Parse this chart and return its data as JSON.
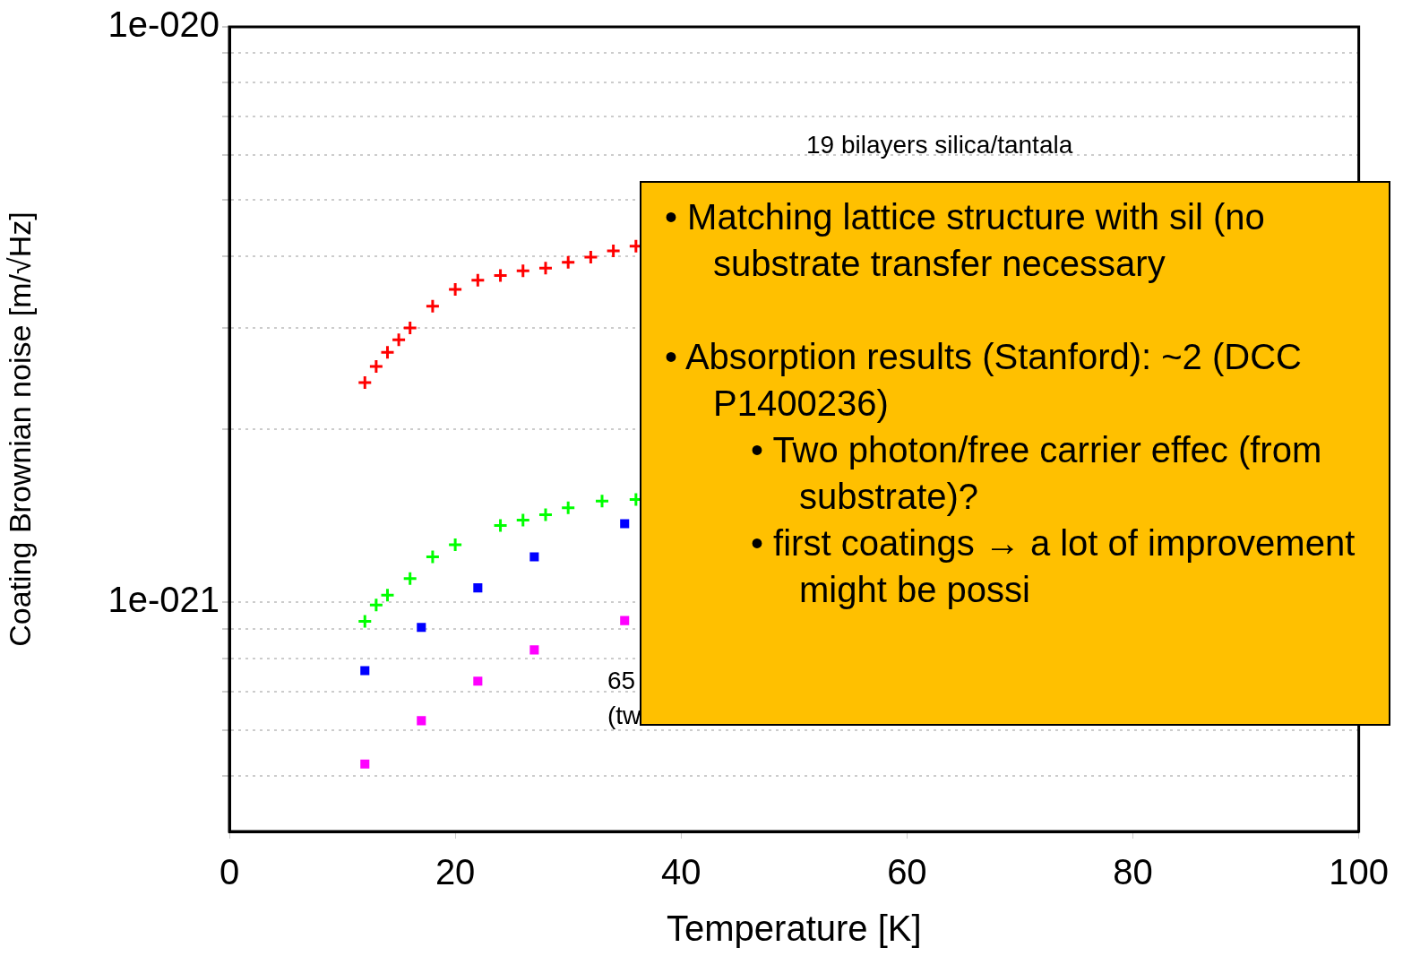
{
  "chart_data": {
    "type": "scatter",
    "xlabel": "Temperature [K]",
    "ylabel": "Coating Brownian noise [m/√Hz]",
    "xlim": [
      0,
      100
    ],
    "xticks": [
      0,
      20,
      40,
      60,
      80,
      100
    ],
    "ylim": [
      4e-22,
      1e-20
    ],
    "log": "y",
    "yticks": [
      {
        "value": 1e-21,
        "label": "1e-021"
      },
      {
        "value": 5e-22,
        "label": null
      },
      {
        "value": 6e-22,
        "label": null
      },
      {
        "value": 7e-22,
        "label": null
      },
      {
        "value": 8e-22,
        "label": null
      },
      {
        "value": 9e-22,
        "label": null
      },
      {
        "value": 2e-21,
        "label": null
      },
      {
        "value": 3e-21,
        "label": null
      },
      {
        "value": 4e-21,
        "label": null
      },
      {
        "value": 5e-21,
        "label": null
      },
      {
        "value": 6e-21,
        "label": null
      },
      {
        "value": 7e-21,
        "label": null
      },
      {
        "value": 8e-21,
        "label": null
      },
      {
        "value": 9e-21,
        "label": null
      },
      {
        "value": 1e-20,
        "label": "1e-020"
      }
    ],
    "grid": "y",
    "legend": false,
    "series": [
      {
        "color": "#ff0000",
        "marker": "cross",
        "x": [
          12,
          13,
          14,
          15,
          16,
          18,
          20,
          22,
          24,
          26,
          28,
          30,
          32,
          34,
          36
        ],
        "values": [
          2.41e-21,
          2.57e-21,
          2.72e-21,
          2.86e-21,
          3e-21,
          3.27e-21,
          3.5e-21,
          3.63e-21,
          3.7e-21,
          3.77e-21,
          3.81e-21,
          3.9e-21,
          3.98e-21,
          4.08e-21,
          4.16e-21
        ]
      },
      {
        "color": "#00ff00",
        "marker": "cross",
        "x": [
          12,
          13,
          14,
          16,
          18,
          20,
          24,
          26,
          28,
          30,
          33,
          36
        ],
        "values": [
          9.27e-22,
          9.9e-22,
          1.03e-21,
          1.1e-21,
          1.2e-21,
          1.26e-21,
          1.36e-21,
          1.39e-21,
          1.42e-21,
          1.46e-21,
          1.5e-21,
          1.51e-21
        ]
      },
      {
        "color": "#0000ff",
        "marker": "square",
        "x": [
          12,
          17,
          22,
          27,
          35
        ],
        "values": [
          7.61e-22,
          9.05e-22,
          1.06e-21,
          1.2e-21,
          1.37e-21
        ]
      },
      {
        "color": "#ff00ff",
        "marker": "square",
        "x": [
          12,
          17,
          22,
          27,
          35
        ],
        "values": [
          5.24e-22,
          6.23e-22,
          7.3e-22,
          8.27e-22,
          9.3e-22
        ]
      }
    ],
    "annotations": [
      "19 bilayers silica/tantala",
      "65",
      "(tw",
      "• Matching lattice structure with sil (no substrate transfer necessary",
      "• Absorption results (Stanford): ~2 (DCC P1400236)",
      "• Two photon/free carrier effec (from substrate)?",
      "• first coatings → a lot of improvement might be possi"
    ]
  }
}
